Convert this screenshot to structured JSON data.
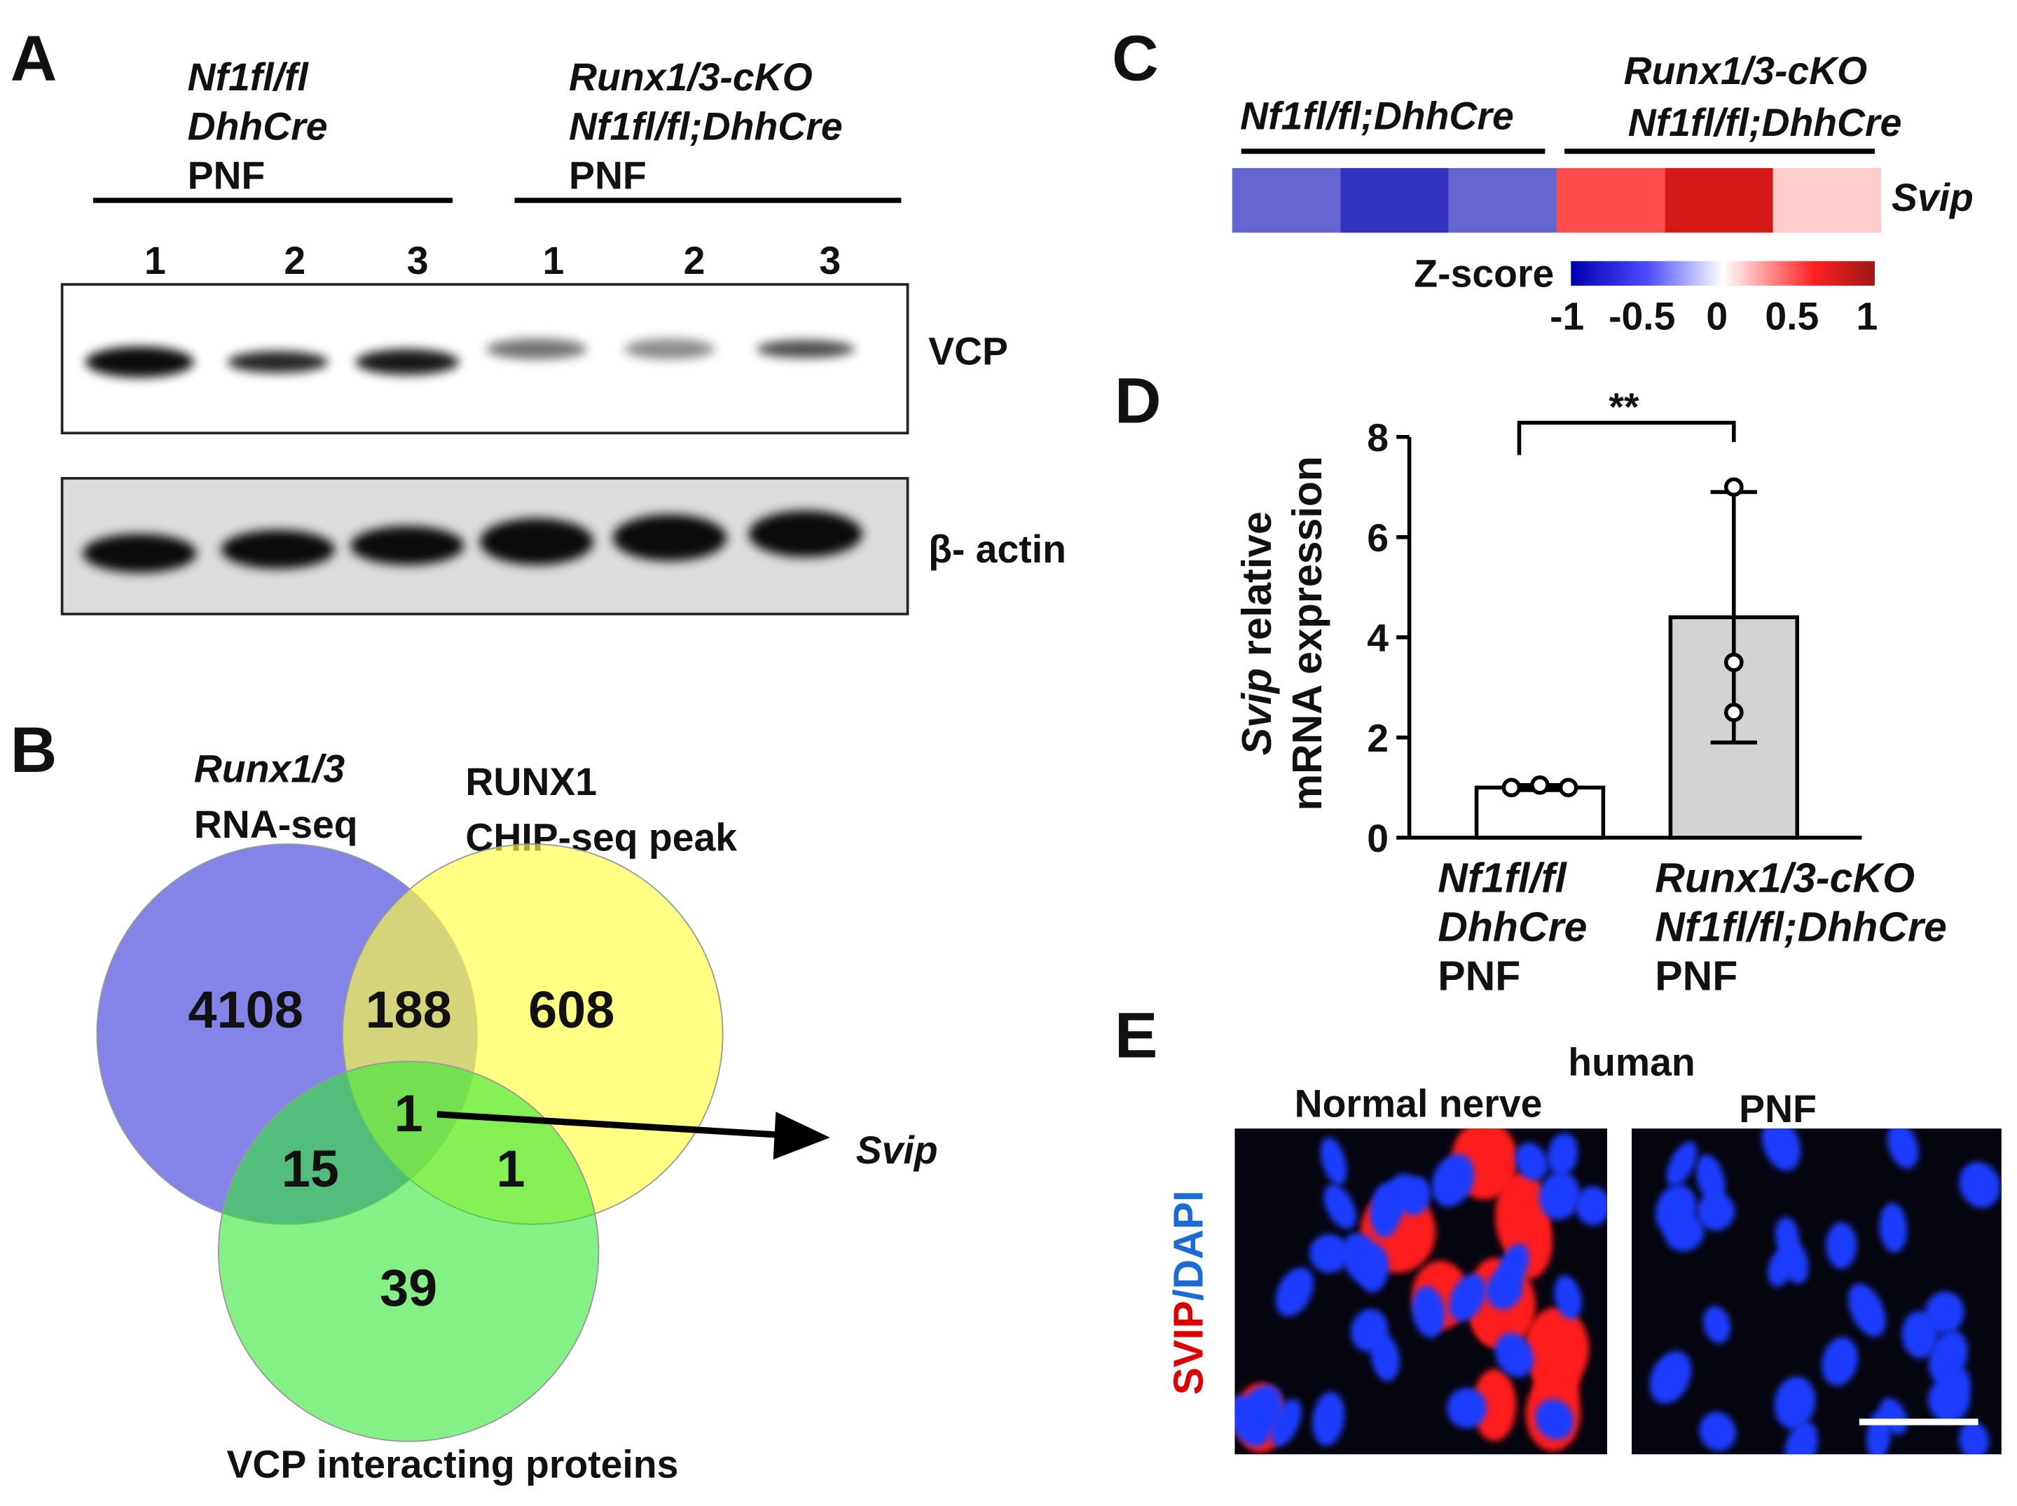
{
  "panel_a": {
    "label": "A",
    "groups": [
      {
        "lines": [
          "Nf1fl/fl",
          "DhhCre",
          "PNF"
        ],
        "lanes": [
          "1",
          "2",
          "3"
        ]
      },
      {
        "lines": [
          "Runx1/3-cKO",
          "Nf1fl/fl;DhhCre",
          "PNF"
        ],
        "lanes": [
          "1",
          "2",
          "3"
        ]
      }
    ],
    "blots": [
      "VCP",
      "β- actin"
    ]
  },
  "panel_b": {
    "label": "B",
    "sets": [
      [
        "Runx1/3",
        "RNA-seq"
      ],
      [
        "RUNX1",
        "CHIP-seq peak"
      ],
      [
        "VCP interacting proteins"
      ]
    ],
    "regions": {
      "rna_seq_only": 4108,
      "rna_seq_chip_seq": 188,
      "chip_seq_only": 608,
      "all_three": 1,
      "rna_seq_vcp": 15,
      "chip_seq_vcp": 1,
      "vcp_only": 39
    },
    "gene": "Svip"
  },
  "panel_c": {
    "label": "C",
    "group_1": "Nf1fl/fl;DhhCre",
    "group_2": [
      "Runx1/3-cKO",
      "Nf1fl/fl;DhhCre"
    ],
    "row": "Svip",
    "values": [
      -0.6,
      -0.8,
      -0.6,
      0.7,
      0.9,
      0.2
    ],
    "colorbar_title": "Z-score",
    "colorbar_lim": [
      -1,
      1
    ],
    "colorbar_ticks": [
      -1,
      -0.5,
      0,
      0.5,
      1
    ]
  },
  "chart_data": {
    "type": "bar",
    "panel": "D",
    "ylabel_italic": "Svip",
    "ylabel_rest": "relative",
    "ylabel_line2": "mRNA expression",
    "categories": [
      [
        "Nf1fl/fl",
        "DhhCre",
        "PNF"
      ],
      [
        "Runx1/3-cKO",
        "Nf1fl/fl;DhhCre",
        "PNF"
      ]
    ],
    "values": [
      1.0,
      4.4
    ],
    "errors": [
      0.05,
      2.5
    ],
    "points": [
      [
        1.0,
        1.05,
        1.0
      ],
      [
        7.0,
        3.5,
        2.5
      ]
    ],
    "colors": [
      "#ffffff",
      "#d3d3d3"
    ],
    "ylim": [
      0,
      8
    ],
    "yticks": [
      0,
      2,
      4,
      6,
      8
    ],
    "significance": "**"
  },
  "panel_e": {
    "label": "E",
    "title": "human",
    "images": [
      "Normal nerve",
      "PNF"
    ],
    "stain": [
      "SVIP",
      "/DAPI"
    ]
  }
}
